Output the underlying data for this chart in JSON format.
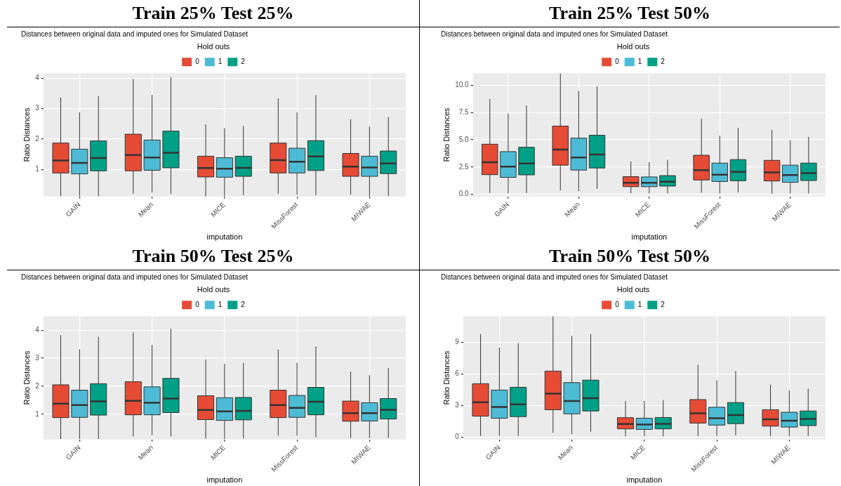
{
  "chart_data": [
    {
      "type": "box",
      "title": "Train 25% Test 25%",
      "subtitle": "Distances between original data and imputed ones for Simulated Dataset",
      "xlabel": "imputation",
      "ylabel": "Ratio Distances",
      "legend_title": "Hold outs",
      "legend": "top",
      "grid": true,
      "categories": [
        "GAIN",
        "Mean",
        "MICE",
        "MissForest",
        "MIWAE"
      ],
      "ylim": [
        0.12,
        4.16
      ],
      "yticks": [
        1,
        2,
        3,
        4
      ],
      "series": [
        {
          "name": "0",
          "color": "#e64b35",
          "boxes": [
            {
              "low": 0.12,
              "q1": 0.89,
              "median": 1.3,
              "q3": 1.87,
              "high": 3.36
            },
            {
              "low": 0.21,
              "q1": 0.96,
              "median": 1.48,
              "q3": 2.16,
              "high": 3.97
            },
            {
              "low": 0.12,
              "q1": 0.76,
              "median": 1.05,
              "q3": 1.44,
              "high": 2.48
            },
            {
              "low": 0.21,
              "q1": 0.89,
              "median": 1.31,
              "q3": 1.87,
              "high": 3.33
            },
            {
              "low": 0.18,
              "q1": 0.78,
              "median": 1.1,
              "q3": 1.53,
              "high": 2.65
            }
          ]
        },
        {
          "name": "1",
          "color": "#4dbbd5",
          "boxes": [
            {
              "low": 0.12,
              "q1": 0.86,
              "median": 1.22,
              "q3": 1.67,
              "high": 2.88
            },
            {
              "low": 0.25,
              "q1": 0.98,
              "median": 1.4,
              "q3": 1.97,
              "high": 3.45
            },
            {
              "low": 0.12,
              "q1": 0.75,
              "median": 1.03,
              "q3": 1.39,
              "high": 2.36
            },
            {
              "low": 0.18,
              "q1": 0.89,
              "median": 1.26,
              "q3": 1.7,
              "high": 2.88
            },
            {
              "low": 0.12,
              "q1": 0.78,
              "median": 1.07,
              "q3": 1.44,
              "high": 2.41
            }
          ]
        },
        {
          "name": "2",
          "color": "#00a087",
          "boxes": [
            {
              "low": 0.12,
              "q1": 0.96,
              "median": 1.38,
              "q3": 1.94,
              "high": 3.41
            },
            {
              "low": 0.2,
              "q1": 1.06,
              "median": 1.55,
              "q3": 2.26,
              "high": 4.03
            },
            {
              "low": 0.16,
              "q1": 0.78,
              "median": 1.06,
              "q3": 1.44,
              "high": 2.43
            },
            {
              "low": 0.16,
              "q1": 0.97,
              "median": 1.43,
              "q3": 1.95,
              "high": 3.44
            },
            {
              "low": 0.12,
              "q1": 0.87,
              "median": 1.2,
              "q3": 1.61,
              "high": 2.72
            }
          ]
        }
      ]
    },
    {
      "type": "box",
      "title": "Train 25% Test 50%",
      "subtitle": "Distances between original data and imputed ones for Simulated Dataset",
      "xlabel": "imputation",
      "ylabel": "Ratio Distances",
      "legend_title": "Hold outs",
      "legend": "top",
      "grid": true,
      "categories": [
        "GAIN",
        "Mean",
        "MICE",
        "MissForest",
        "MIWAE"
      ],
      "ylim": [
        -0.2,
        11.1
      ],
      "yticks": [
        {
          "value": 0,
          "label": "0.0"
        },
        2.5,
        {
          "value": 5,
          "label": "5.0"
        },
        7.5,
        {
          "value": 10,
          "label": "10.0"
        }
      ],
      "series": [
        {
          "name": "0",
          "color": "#e64b35",
          "boxes": [
            {
              "low": 0.12,
              "q1": 1.8,
              "median": 2.93,
              "q3": 4.59,
              "high": 8.74
            },
            {
              "low": 0.37,
              "q1": 2.67,
              "median": 4.1,
              "q3": 6.25,
              "high": 11.1
            },
            {
              "low": 0.1,
              "q1": 0.7,
              "median": 1.05,
              "q3": 1.62,
              "high": 3.02
            },
            {
              "low": 0.14,
              "q1": 1.31,
              "median": 2.22,
              "q3": 3.58,
              "high": 6.93
            },
            {
              "low": 0.05,
              "q1": 1.22,
              "median": 2.01,
              "q3": 3.11,
              "high": 5.9
            }
          ]
        },
        {
          "name": "1",
          "color": "#4dbbd5",
          "boxes": [
            {
              "low": 0.1,
              "q1": 1.55,
              "median": 2.53,
              "q3": 3.91,
              "high": 7.4
            },
            {
              "low": 0.28,
              "q1": 2.22,
              "median": 3.37,
              "q3": 5.15,
              "high": 9.46
            },
            {
              "low": 0.08,
              "q1": 0.7,
              "median": 1.05,
              "q3": 1.59,
              "high": 2.95
            },
            {
              "low": 0.08,
              "q1": 1.17,
              "median": 1.8,
              "q3": 2.86,
              "high": 5.36
            },
            {
              "low": 0.08,
              "q1": 1.1,
              "median": 1.76,
              "q3": 2.67,
              "high": 4.96
            }
          ]
        },
        {
          "name": "2",
          "color": "#00a087",
          "boxes": [
            {
              "low": 0.12,
              "q1": 1.78,
              "median": 2.83,
              "q3": 4.31,
              "high": 8.13
            },
            {
              "low": 0.49,
              "q1": 2.41,
              "median": 3.65,
              "q3": 5.41,
              "high": 9.88
            },
            {
              "low": 0.08,
              "q1": 0.75,
              "median": 1.15,
              "q3": 1.71,
              "high": 3.16
            },
            {
              "low": 0.16,
              "q1": 1.24,
              "median": 2.06,
              "q3": 3.18,
              "high": 6.09
            },
            {
              "low": 0.08,
              "q1": 1.26,
              "median": 1.94,
              "q3": 2.86,
              "high": 5.27
            }
          ]
        }
      ]
    },
    {
      "type": "box",
      "title": "Train 50% Test 25%",
      "subtitle": "Distances between original data and imputed ones for Simulated Dataset",
      "xlabel": "imputation",
      "ylabel": "Ratio Distances",
      "legend_title": "Hold outs",
      "legend": "top",
      "grid": true,
      "categories": [
        "GAIN",
        "Mean",
        "MICE",
        "MissForest",
        "MIWAE"
      ],
      "ylim": [
        0.1,
        4.5
      ],
      "yticks": [
        1,
        2,
        3,
        4
      ],
      "series": [
        {
          "name": "0",
          "color": "#e64b35",
          "boxes": [
            {
              "low": 0.12,
              "q1": 0.88,
              "median": 1.38,
              "q3": 2.05,
              "high": 3.82
            },
            {
              "low": 0.21,
              "q1": 0.98,
              "median": 1.48,
              "q3": 2.16,
              "high": 3.92
            },
            {
              "low": 0.13,
              "q1": 0.81,
              "median": 1.15,
              "q3": 1.66,
              "high": 2.95
            },
            {
              "low": 0.24,
              "q1": 0.88,
              "median": 1.33,
              "q3": 1.86,
              "high": 3.31
            },
            {
              "low": 0.15,
              "q1": 0.75,
              "median": 1.04,
              "q3": 1.47,
              "high": 2.52
            }
          ]
        },
        {
          "name": "1",
          "color": "#4dbbd5",
          "boxes": [
            {
              "low": 0.12,
              "q1": 0.89,
              "median": 1.33,
              "q3": 1.86,
              "high": 3.32
            },
            {
              "low": 0.25,
              "q1": 0.98,
              "median": 1.41,
              "q3": 1.98,
              "high": 3.47
            },
            {
              "low": 0.12,
              "q1": 0.78,
              "median": 1.1,
              "q3": 1.59,
              "high": 2.8
            },
            {
              "low": 0.23,
              "q1": 0.89,
              "median": 1.23,
              "q3": 1.67,
              "high": 2.83
            },
            {
              "low": 0.15,
              "q1": 0.76,
              "median": 1.04,
              "q3": 1.41,
              "high": 2.39
            }
          ]
        },
        {
          "name": "2",
          "color": "#00a087",
          "boxes": [
            {
              "low": 0.12,
              "q1": 0.97,
              "median": 1.46,
              "q3": 2.09,
              "high": 3.77
            },
            {
              "low": 0.21,
              "q1": 1.06,
              "median": 1.56,
              "q3": 2.28,
              "high": 4.05
            },
            {
              "low": 0.14,
              "q1": 0.8,
              "median": 1.12,
              "q3": 1.6,
              "high": 2.83
            },
            {
              "low": 0.18,
              "q1": 0.98,
              "median": 1.45,
              "q3": 1.96,
              "high": 3.42
            },
            {
              "low": 0.15,
              "q1": 0.83,
              "median": 1.16,
              "q3": 1.56,
              "high": 2.65
            }
          ]
        }
      ]
    },
    {
      "type": "box",
      "title": "Train 50% Test 50%",
      "subtitle": "Distances between original data and imputed ones for Simulated Dataset",
      "xlabel": "imputation",
      "ylabel": "Ratio Distances",
      "legend_title": "Hold outs",
      "legend": "top",
      "grid": true,
      "categories": [
        "GAIN",
        "Mean",
        "MICE",
        "MissForest",
        "MIWAE"
      ],
      "ylim": [
        -0.2,
        11.45
      ],
      "yticks": [
        0,
        3,
        6,
        9
      ],
      "series": [
        {
          "name": "0",
          "color": "#e64b35",
          "boxes": [
            {
              "low": 0.14,
              "q1": 2.0,
              "median": 3.31,
              "q3": 5.07,
              "high": 9.76
            },
            {
              "low": 0.43,
              "q1": 2.61,
              "median": 4.13,
              "q3": 6.26,
              "high": 11.45
            },
            {
              "low": 0.1,
              "q1": 0.8,
              "median": 1.26,
              "q3": 1.86,
              "high": 3.43
            },
            {
              "low": 0.12,
              "q1": 1.35,
              "median": 2.27,
              "q3": 3.57,
              "high": 6.86
            },
            {
              "low": 0.12,
              "q1": 1.06,
              "median": 1.71,
              "q3": 2.61,
              "high": 4.98
            }
          ]
        },
        {
          "name": "1",
          "color": "#4dbbd5",
          "boxes": [
            {
              "low": 0.14,
              "q1": 1.81,
              "median": 2.87,
              "q3": 4.47,
              "high": 8.48
            },
            {
              "low": 0.29,
              "q1": 2.22,
              "median": 3.43,
              "q3": 5.17,
              "high": 9.59
            },
            {
              "low": 0.1,
              "q1": 0.75,
              "median": 1.21,
              "q3": 1.81,
              "high": 3.43
            },
            {
              "low": 0.12,
              "q1": 1.16,
              "median": 1.81,
              "q3": 2.85,
              "high": 5.39
            },
            {
              "low": 0.12,
              "q1": 0.97,
              "median": 1.57,
              "q3": 2.37,
              "high": 4.44
            }
          ]
        },
        {
          "name": "2",
          "color": "#00a087",
          "boxes": [
            {
              "low": 0.14,
              "q1": 1.96,
              "median": 3.12,
              "q3": 4.73,
              "high": 8.91
            },
            {
              "low": 0.53,
              "q1": 2.49,
              "median": 3.7,
              "q3": 5.41,
              "high": 9.76
            },
            {
              "low": 0.1,
              "q1": 0.8,
              "median": 1.28,
              "q3": 1.88,
              "high": 3.53
            },
            {
              "low": 0.19,
              "q1": 1.3,
              "median": 2.1,
              "q3": 3.29,
              "high": 6.26
            },
            {
              "low": 0.12,
              "q1": 1.11,
              "median": 1.74,
              "q3": 2.49,
              "high": 4.59
            }
          ]
        }
      ]
    }
  ]
}
